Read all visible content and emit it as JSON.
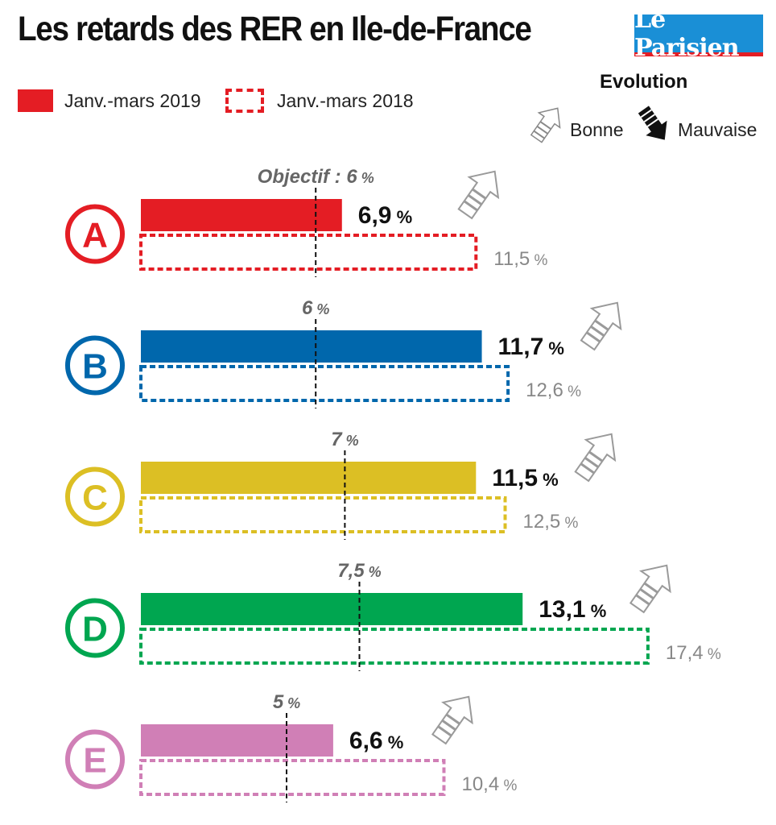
{
  "title": "Les retards des RER en Ile-de-France",
  "logo": "Le Parisien",
  "legend": {
    "series_2019": "Janv.-mars 2019",
    "series_2018": "Janv.-mars 2018"
  },
  "evolution": {
    "title": "Evolution",
    "good": "Bonne",
    "bad": "Mauvaise"
  },
  "objective_prefix": "Objectif : ",
  "chart_data": {
    "type": "bar",
    "title": "Les retards des RER en Ile-de-France",
    "unit": "%",
    "categories": [
      "A",
      "B",
      "C",
      "D",
      "E"
    ],
    "series": [
      {
        "name": "Janv.-mars 2019",
        "values": [
          6.9,
          11.7,
          11.5,
          13.1,
          6.6
        ],
        "labels": [
          "6,9",
          "11,7",
          "11,5",
          "13,1",
          "6,6"
        ],
        "style": "filled"
      },
      {
        "name": "Janv.-mars 2018",
        "values": [
          11.5,
          12.6,
          12.5,
          17.4,
          10.4
        ],
        "labels": [
          "11,5",
          "12,6",
          "12,5",
          "17,4",
          "10,4"
        ],
        "style": "dashed"
      }
    ],
    "objectives": [
      6,
      6,
      7,
      7.5,
      5
    ],
    "objective_labels": [
      "6",
      "6",
      "7",
      "7,5",
      "5"
    ],
    "evolution": [
      "Bonne",
      "Bonne",
      "Bonne",
      "Bonne",
      "Bonne"
    ],
    "colors": [
      "#e41d24",
      "#0067ac",
      "#dcbf24",
      "#00a650",
      "#d07fb6"
    ],
    "xlim": [
      0,
      17.4
    ],
    "grid": false,
    "legend_position": "top-left"
  }
}
